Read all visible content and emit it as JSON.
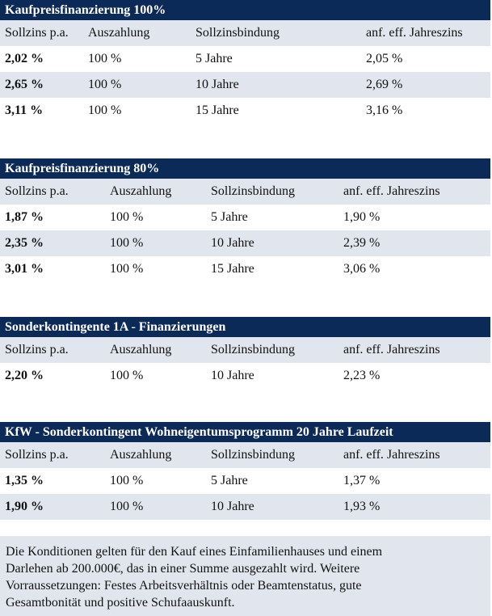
{
  "tables": [
    {
      "title": "Kaufpreisfinanzierung 100%",
      "headers": [
        "Sollzins p.a.",
        "Auszahlung",
        "Sollzinsbindung",
        "anf. eff. Jahreszins"
      ],
      "rows": [
        [
          "2,02 %",
          "100 %",
          "5 Jahre",
          "2,05 %"
        ],
        [
          "2,65 %",
          "100 %",
          "10 Jahre",
          "2,69 %"
        ],
        [
          "3,11 %",
          "100 %",
          "15 Jahre",
          "3,16 %"
        ]
      ]
    },
    {
      "title": "Kaufpreisfinanzierung 80%",
      "headers": [
        "Sollzins p.a.",
        "Auszahlung",
        "Sollzinsbindung",
        "anf. eff. Jahreszins"
      ],
      "rows": [
        [
          "1,87 %",
          "100 %",
          "5 Jahre",
          "1,90 %"
        ],
        [
          "2,35 %",
          "100 %",
          "10 Jahre",
          "2,39 %"
        ],
        [
          "3,01 %",
          "100 %",
          "15 Jahre",
          "3,06 %"
        ]
      ]
    },
    {
      "title": "Sonderkontingente 1A - Finanzierungen",
      "headers": [
        "Sollzins p.a.",
        "Auszahlung",
        "Sollzinsbindung",
        "anf. eff. Jahreszins"
      ],
      "rows": [
        [
          "2,20 %",
          "100 %",
          "10 Jahre",
          "2,23 %"
        ]
      ]
    },
    {
      "title": "KfW - Sonderkontingent Wohneigentumsprogramm 20 Jahre Laufzeit",
      "headers": [
        "Sollzins p.a.",
        "Auszahlung",
        "Sollzinsbindung",
        "anf. eff. Jahreszins"
      ],
      "rows": [
        [
          "1,35 %",
          "100 %",
          "5 Jahre",
          "1,37 %"
        ],
        [
          "1,90 %",
          "100 %",
          "10 Jahre",
          "1,93 %"
        ]
      ]
    }
  ],
  "note": {
    "lines": [
      "Die Konditionen gelten für den Kauf eines Einfamilienhauses und einem",
      "Darlehen ab 200.000€, das in einer Summe ausgezahlt wird. Weitere",
      "Vorraussetzungen: Festes Arbeitsverhältnis oder Beamtenstatus, gute",
      "Gesamtbonität und positive Schufaauskunft."
    ]
  }
}
